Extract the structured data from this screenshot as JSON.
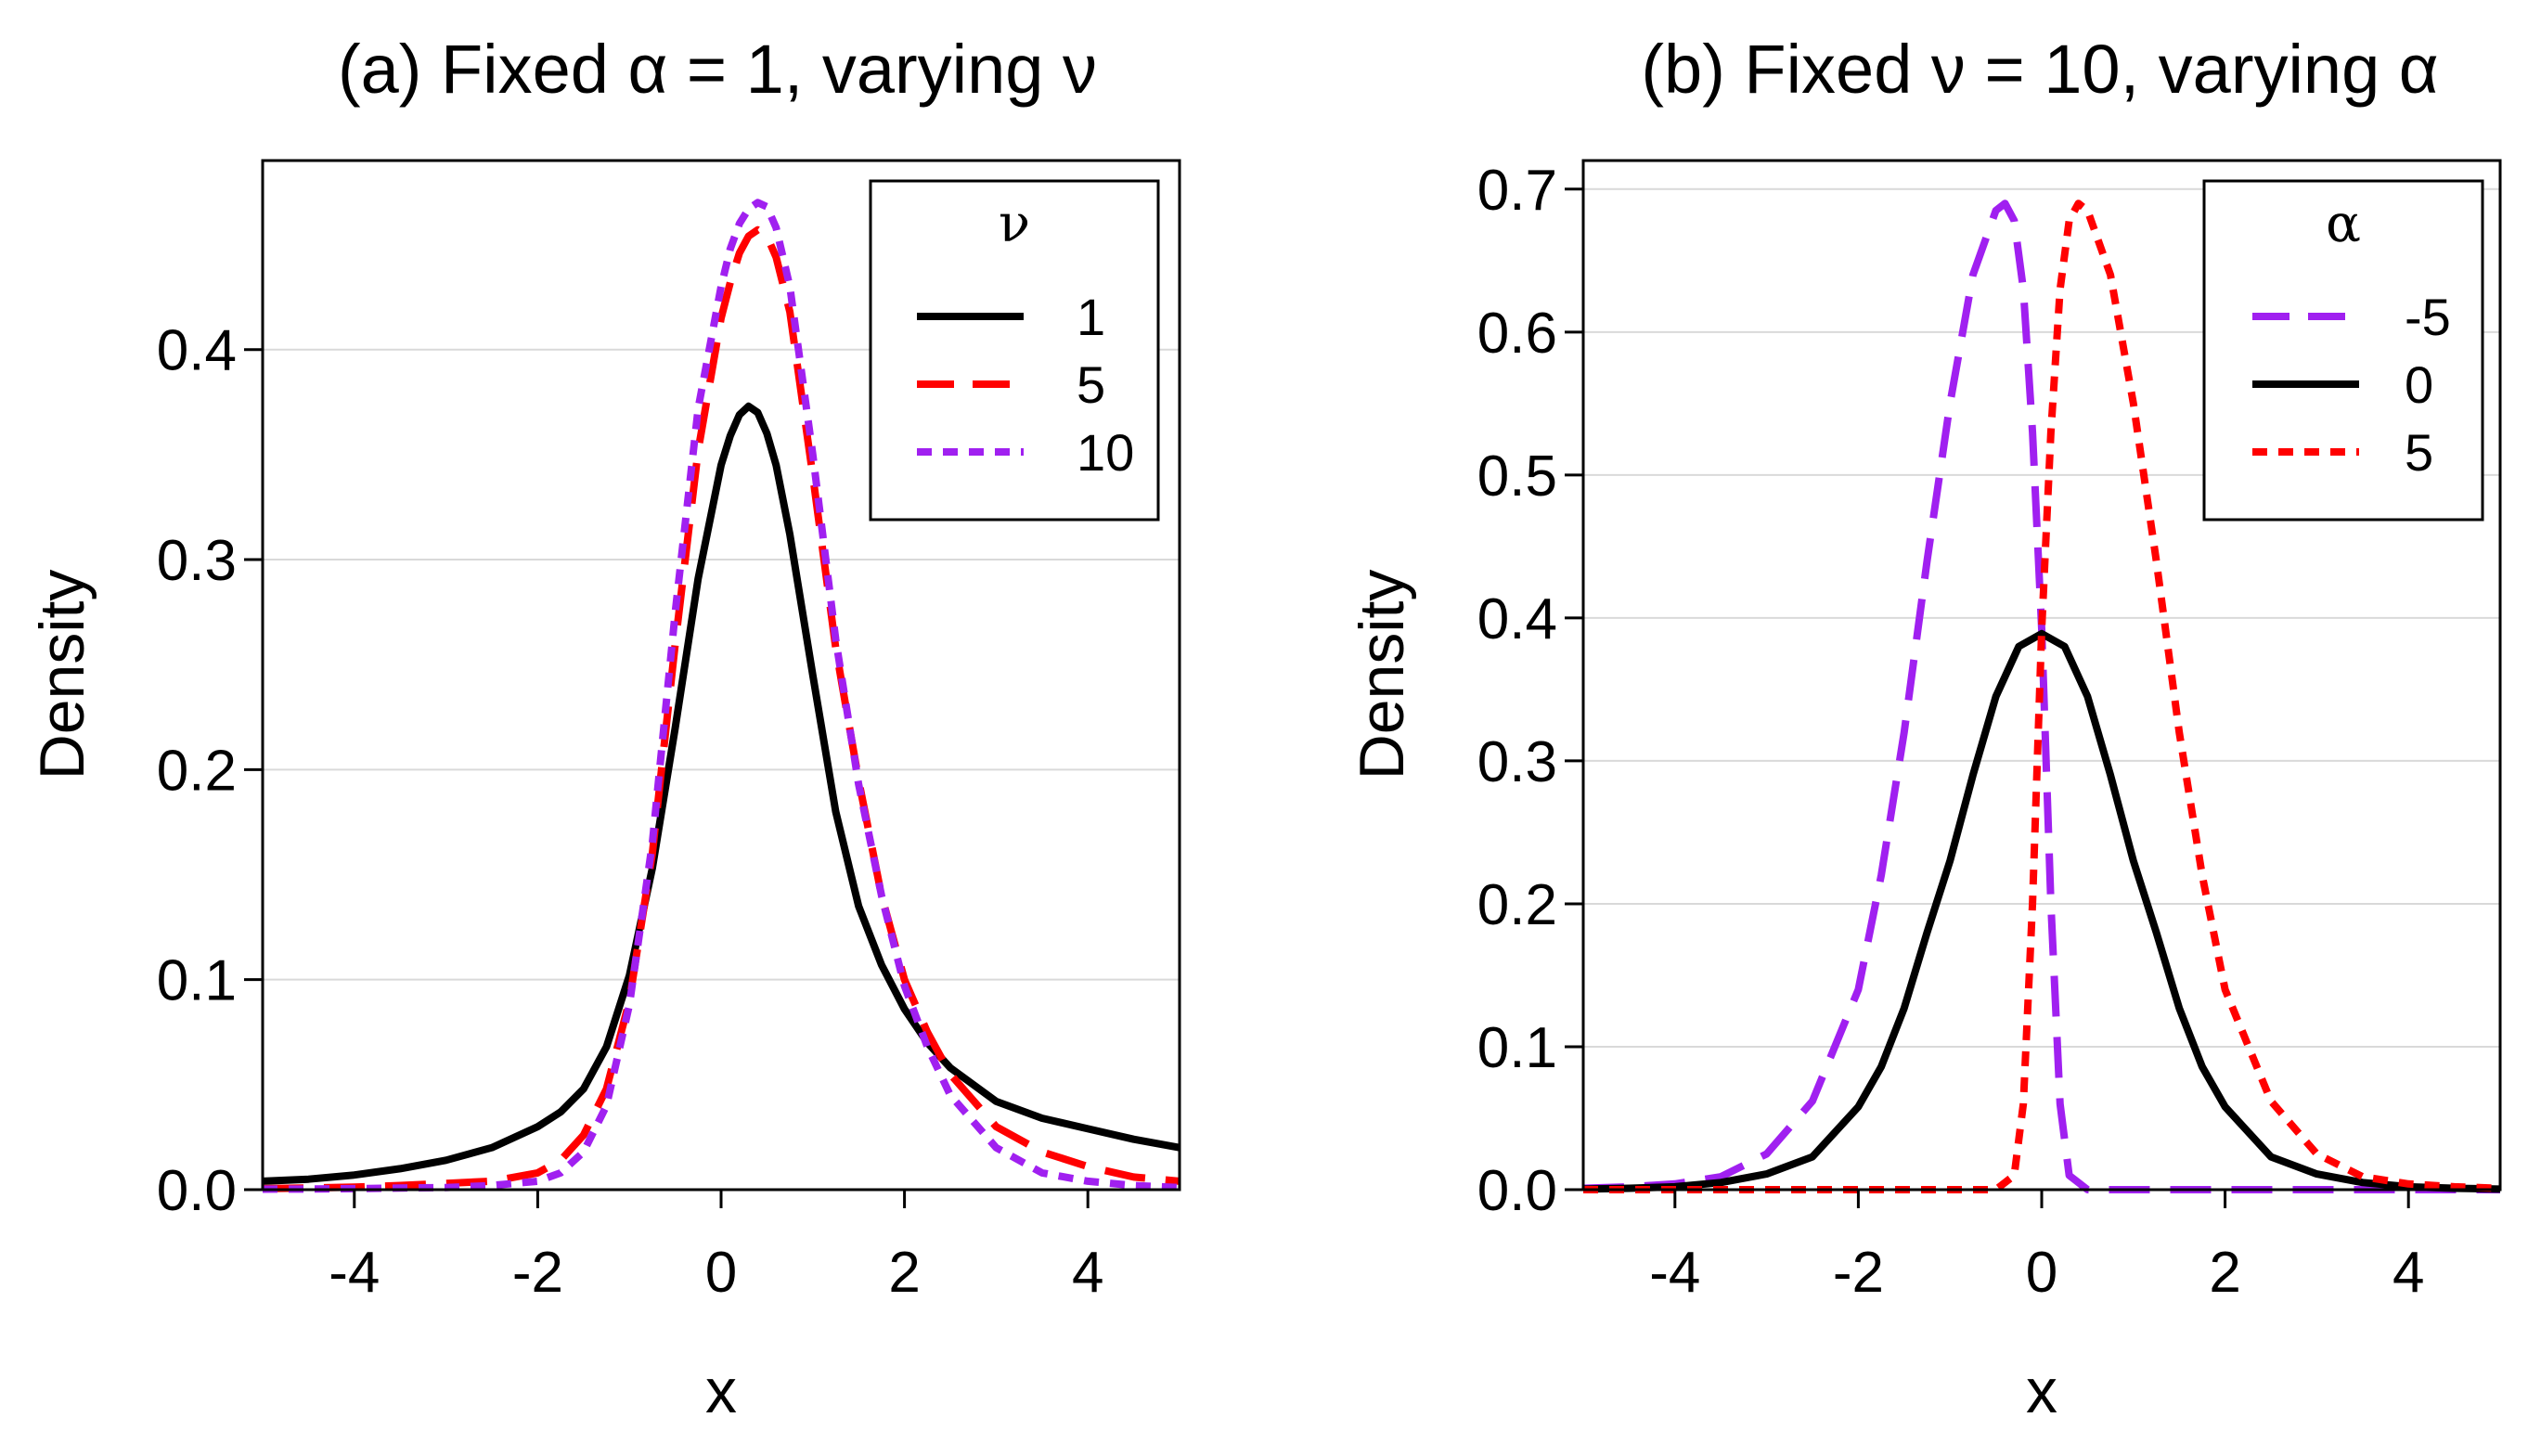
{
  "chart_data": [
    {
      "type": "line",
      "title": "(a) Fixed α = 1, varying ν",
      "xlabel": "x",
      "ylabel": "Density",
      "xlim": [
        -5,
        5
      ],
      "ylim": [
        0,
        0.49
      ],
      "x_ticks": [
        -4,
        -2,
        0,
        2,
        4
      ],
      "x_tick_labels": [
        "-4",
        "-2",
        "0",
        "2",
        "4"
      ],
      "y_ticks": [
        0.0,
        0.1,
        0.2,
        0.3,
        0.4
      ],
      "y_tick_labels": [
        "0.0",
        "0.1",
        "0.2",
        "0.3",
        "0.4"
      ],
      "grid": "horizontal",
      "legend": {
        "title": "ν",
        "position": "top-right",
        "entries": [
          "1",
          "5",
          "10"
        ]
      },
      "series": [
        {
          "name": "1",
          "color": "#000000",
          "dash": "solid",
          "x": [
            -5,
            -4.5,
            -4,
            -3.5,
            -3,
            -2.5,
            -2,
            -1.75,
            -1.5,
            -1.25,
            -1,
            -0.75,
            -0.5,
            -0.25,
            0,
            0.1,
            0.2,
            0.3,
            0.4,
            0.5,
            0.6,
            0.75,
            1,
            1.25,
            1.5,
            1.75,
            2,
            2.25,
            2.5,
            3,
            3.5,
            4,
            4.5,
            5
          ],
          "y": [
            0.004,
            0.005,
            0.007,
            0.01,
            0.014,
            0.02,
            0.03,
            0.037,
            0.048,
            0.068,
            0.102,
            0.153,
            0.22,
            0.291,
            0.345,
            0.359,
            0.369,
            0.373,
            0.37,
            0.36,
            0.345,
            0.312,
            0.245,
            0.18,
            0.135,
            0.107,
            0.086,
            0.07,
            0.058,
            0.042,
            0.034,
            0.029,
            0.024,
            0.02
          ]
        },
        {
          "name": "5",
          "color": "#ff0000",
          "dash": "long-dash",
          "x": [
            -5,
            -4.5,
            -4,
            -3.5,
            -3,
            -2.5,
            -2,
            -1.75,
            -1.5,
            -1.25,
            -1,
            -0.75,
            -0.5,
            -0.25,
            0,
            0.1,
            0.2,
            0.3,
            0.4,
            0.5,
            0.6,
            0.75,
            1,
            1.25,
            1.5,
            1.75,
            2,
            2.25,
            2.5,
            3,
            3.5,
            4,
            4.5,
            5
          ],
          "y": [
            0.0005,
            0.0008,
            0.0012,
            0.002,
            0.003,
            0.004,
            0.008,
            0.014,
            0.026,
            0.048,
            0.09,
            0.16,
            0.26,
            0.352,
            0.415,
            0.432,
            0.446,
            0.454,
            0.457,
            0.454,
            0.444,
            0.418,
            0.34,
            0.258,
            0.195,
            0.14,
            0.1,
            0.075,
            0.055,
            0.03,
            0.018,
            0.011,
            0.006,
            0.004
          ]
        },
        {
          "name": "10",
          "color": "#a020f0",
          "dash": "short-dash",
          "x": [
            -5,
            -4.5,
            -4,
            -3.5,
            -3,
            -2.5,
            -2,
            -1.75,
            -1.5,
            -1.25,
            -1,
            -0.75,
            -0.5,
            -0.25,
            0,
            0.1,
            0.2,
            0.3,
            0.4,
            0.5,
            0.6,
            0.75,
            1,
            1.25,
            1.5,
            1.75,
            2,
            2.25,
            2.5,
            3,
            3.5,
            4,
            4.5,
            5
          ],
          "y": [
            0.0002,
            0.0003,
            0.0005,
            0.0008,
            0.001,
            0.002,
            0.004,
            0.008,
            0.018,
            0.04,
            0.088,
            0.165,
            0.275,
            0.372,
            0.43,
            0.448,
            0.46,
            0.467,
            0.47,
            0.468,
            0.458,
            0.43,
            0.35,
            0.262,
            0.193,
            0.14,
            0.097,
            0.068,
            0.045,
            0.02,
            0.008,
            0.004,
            0.002,
            0.001
          ]
        }
      ]
    },
    {
      "type": "line",
      "title": "(b) Fixed ν = 10, varying α",
      "xlabel": "x",
      "ylabel": "Density",
      "xlim": [
        -5,
        5
      ],
      "ylim": [
        0,
        0.72
      ],
      "x_ticks": [
        -4,
        -2,
        0,
        2,
        4
      ],
      "x_tick_labels": [
        "-4",
        "-2",
        "0",
        "2",
        "4"
      ],
      "y_ticks": [
        0.0,
        0.1,
        0.2,
        0.3,
        0.4,
        0.5,
        0.6,
        0.7
      ],
      "y_tick_labels": [
        "0.0",
        "0.1",
        "0.2",
        "0.3",
        "0.4",
        "0.5",
        "0.6",
        "0.7"
      ],
      "grid": "horizontal",
      "legend": {
        "title": "α",
        "position": "top-right",
        "entries": [
          "-5",
          "0",
          "5"
        ]
      },
      "series": [
        {
          "name": "-5",
          "color": "#a020f0",
          "dash": "long-dash",
          "x": [
            -5,
            -4.5,
            -4,
            -3.5,
            -3,
            -2.5,
            -2,
            -1.75,
            -1.5,
            -1.25,
            -1,
            -0.75,
            -0.5,
            -0.4,
            -0.3,
            -0.2,
            -0.1,
            0,
            0.1,
            0.2,
            0.3,
            0.5,
            1,
            2,
            3,
            4,
            5
          ],
          "y": [
            0.001,
            0.002,
            0.004,
            0.009,
            0.025,
            0.062,
            0.14,
            0.22,
            0.32,
            0.44,
            0.55,
            0.64,
            0.685,
            0.69,
            0.678,
            0.63,
            0.53,
            0.392,
            0.2,
            0.06,
            0.01,
            0,
            0,
            0,
            0,
            0,
            0
          ]
        },
        {
          "name": "0",
          "color": "#000000",
          "dash": "solid",
          "x": [
            -5,
            -4.5,
            -4,
            -3.5,
            -3,
            -2.5,
            -2,
            -1.75,
            -1.5,
            -1.25,
            -1,
            -0.75,
            -0.5,
            -0.25,
            0,
            0.25,
            0.5,
            0.75,
            1,
            1.25,
            1.5,
            1.75,
            2,
            2.5,
            3,
            3.5,
            4,
            4.5,
            5
          ],
          "y": [
            0.0004,
            0.001,
            0.002,
            0.005,
            0.011,
            0.023,
            0.058,
            0.086,
            0.127,
            0.18,
            0.23,
            0.29,
            0.345,
            0.38,
            0.389,
            0.38,
            0.345,
            0.29,
            0.23,
            0.18,
            0.127,
            0.086,
            0.058,
            0.023,
            0.011,
            0.005,
            0.002,
            0.001,
            0.0004
          ]
        },
        {
          "name": "5",
          "color": "#ff0000",
          "dash": "short-dash",
          "x": [
            -5,
            -4,
            -3,
            -2,
            -1,
            -0.5,
            -0.3,
            -0.2,
            -0.1,
            0,
            0.1,
            0.2,
            0.3,
            0.4,
            0.5,
            0.75,
            1,
            1.25,
            1.5,
            1.75,
            2,
            2.5,
            3,
            3.5,
            4,
            4.5,
            5
          ],
          "y": [
            0,
            0,
            0,
            0,
            0,
            0,
            0.01,
            0.06,
            0.2,
            0.392,
            0.53,
            0.63,
            0.678,
            0.69,
            0.685,
            0.64,
            0.55,
            0.44,
            0.32,
            0.22,
            0.14,
            0.062,
            0.025,
            0.009,
            0.004,
            0.002,
            0.001
          ]
        }
      ]
    }
  ]
}
